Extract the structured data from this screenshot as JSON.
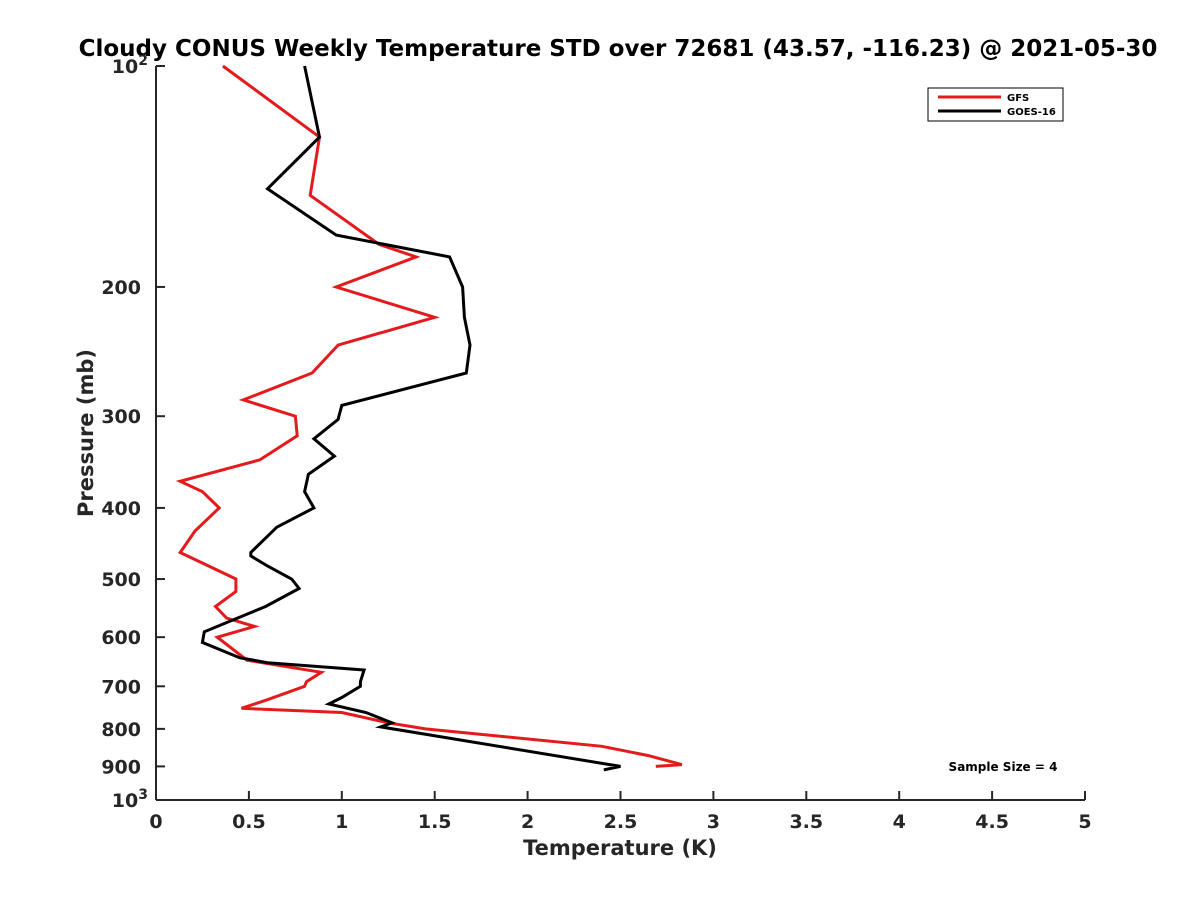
{
  "chart_data": {
    "type": "line",
    "title": "Cloudy CONUS Weekly Temperature STD over 72681 (43.57, -116.23) @ 2021-05-30",
    "xlabel": "Temperature (K)",
    "ylabel": "Pressure (mb)",
    "xlim": [
      0,
      5
    ],
    "ylim": [
      100,
      1000
    ],
    "y_scale": "log",
    "y_reversed": true,
    "grid": false,
    "legend_position": "top-right",
    "x_ticks": [
      {
        "value": 0,
        "label": "0"
      },
      {
        "value": 0.5,
        "label": "0.5"
      },
      {
        "value": 1,
        "label": "1"
      },
      {
        "value": 1.5,
        "label": "1.5"
      },
      {
        "value": 2,
        "label": "2"
      },
      {
        "value": 2.5,
        "label": "2.5"
      },
      {
        "value": 3,
        "label": "3"
      },
      {
        "value": 3.5,
        "label": "3.5"
      },
      {
        "value": 4,
        "label": "4"
      },
      {
        "value": 4.5,
        "label": "4.5"
      },
      {
        "value": 5,
        "label": "5"
      }
    ],
    "y_ticks": [
      {
        "value": 100,
        "base": "10",
        "exp": "2"
      },
      {
        "value": 200,
        "label": "200"
      },
      {
        "value": 300,
        "label": "300"
      },
      {
        "value": 400,
        "label": "400"
      },
      {
        "value": 500,
        "label": "500"
      },
      {
        "value": 600,
        "label": "600"
      },
      {
        "value": 700,
        "label": "700"
      },
      {
        "value": 800,
        "label": "800"
      },
      {
        "value": 900,
        "label": "900"
      },
      {
        "value": 1000,
        "base": "10",
        "exp": "3"
      }
    ],
    "series": [
      {
        "name": "GFS",
        "color": "#e41a1c",
        "points": [
          {
            "x": 0.36,
            "y": 100
          },
          {
            "x": 0.88,
            "y": 125
          },
          {
            "x": 0.83,
            "y": 150
          },
          {
            "x": 1.2,
            "y": 175
          },
          {
            "x": 1.4,
            "y": 182
          },
          {
            "x": 0.97,
            "y": 200
          },
          {
            "x": 1.5,
            "y": 220
          },
          {
            "x": 0.98,
            "y": 240
          },
          {
            "x": 0.84,
            "y": 262
          },
          {
            "x": 0.47,
            "y": 285
          },
          {
            "x": 0.75,
            "y": 300
          },
          {
            "x": 0.76,
            "y": 319
          },
          {
            "x": 0.56,
            "y": 344
          },
          {
            "x": 0.13,
            "y": 368
          },
          {
            "x": 0.25,
            "y": 380
          },
          {
            "x": 0.34,
            "y": 400
          },
          {
            "x": 0.21,
            "y": 430
          },
          {
            "x": 0.13,
            "y": 460
          },
          {
            "x": 0.43,
            "y": 500
          },
          {
            "x": 0.43,
            "y": 520
          },
          {
            "x": 0.32,
            "y": 545
          },
          {
            "x": 0.38,
            "y": 565
          },
          {
            "x": 0.53,
            "y": 580
          },
          {
            "x": 0.33,
            "y": 600
          },
          {
            "x": 0.49,
            "y": 645
          },
          {
            "x": 0.89,
            "y": 670
          },
          {
            "x": 0.81,
            "y": 690
          },
          {
            "x": 0.8,
            "y": 700
          },
          {
            "x": 0.6,
            "y": 730
          },
          {
            "x": 0.46,
            "y": 750
          },
          {
            "x": 1.0,
            "y": 760
          },
          {
            "x": 1.25,
            "y": 785
          },
          {
            "x": 1.45,
            "y": 800
          },
          {
            "x": 2.4,
            "y": 845
          },
          {
            "x": 2.65,
            "y": 870
          },
          {
            "x": 2.83,
            "y": 895
          },
          {
            "x": 2.69,
            "y": 900
          }
        ]
      },
      {
        "name": "GOES-16",
        "color": "#000000",
        "points": [
          {
            "x": 0.8,
            "y": 100
          },
          {
            "x": 0.88,
            "y": 125
          },
          {
            "x": 0.6,
            "y": 147
          },
          {
            "x": 0.97,
            "y": 170
          },
          {
            "x": 1.58,
            "y": 182
          },
          {
            "x": 1.65,
            "y": 200
          },
          {
            "x": 1.66,
            "y": 220
          },
          {
            "x": 1.69,
            "y": 240
          },
          {
            "x": 1.67,
            "y": 262
          },
          {
            "x": 1.0,
            "y": 290
          },
          {
            "x": 0.98,
            "y": 303
          },
          {
            "x": 0.85,
            "y": 322
          },
          {
            "x": 0.96,
            "y": 340
          },
          {
            "x": 0.82,
            "y": 360
          },
          {
            "x": 0.8,
            "y": 380
          },
          {
            "x": 0.85,
            "y": 400
          },
          {
            "x": 0.65,
            "y": 425
          },
          {
            "x": 0.51,
            "y": 460
          },
          {
            "x": 0.51,
            "y": 465
          },
          {
            "x": 0.6,
            "y": 480
          },
          {
            "x": 0.73,
            "y": 500
          },
          {
            "x": 0.77,
            "y": 515
          },
          {
            "x": 0.59,
            "y": 545
          },
          {
            "x": 0.26,
            "y": 590
          },
          {
            "x": 0.25,
            "y": 610
          },
          {
            "x": 0.45,
            "y": 640
          },
          {
            "x": 0.6,
            "y": 650
          },
          {
            "x": 1.12,
            "y": 665
          },
          {
            "x": 1.1,
            "y": 690
          },
          {
            "x": 1.1,
            "y": 700
          },
          {
            "x": 1.0,
            "y": 725
          },
          {
            "x": 0.93,
            "y": 740
          },
          {
            "x": 1.13,
            "y": 760
          },
          {
            "x": 1.27,
            "y": 785
          },
          {
            "x": 1.21,
            "y": 795
          },
          {
            "x": 2.5,
            "y": 900
          },
          {
            "x": 2.41,
            "y": 910
          }
        ]
      }
    ],
    "annotation": "Sample Size = 4"
  }
}
